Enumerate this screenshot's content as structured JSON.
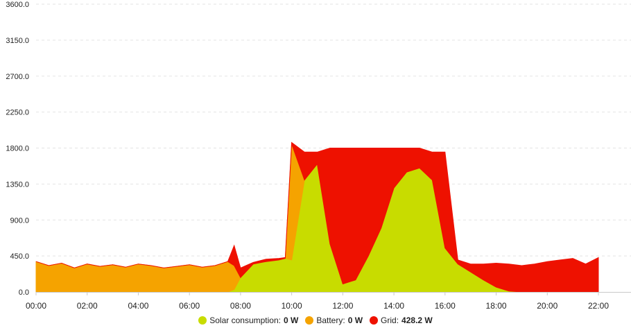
{
  "chart_data": {
    "type": "area",
    "stacked": true,
    "title": "",
    "xlabel": "",
    "ylabel": "",
    "ylim": [
      0,
      3600
    ],
    "xlim": [
      "00:00",
      "23:00"
    ],
    "y_ticks": [
      "0.0",
      "450.0",
      "900.0",
      "1350.0",
      "1800.0",
      "2250.0",
      "2700.0",
      "3150.0",
      "3600.0"
    ],
    "x_ticks": [
      "00:00",
      "02:00",
      "04:00",
      "06:00",
      "08:00",
      "10:00",
      "12:00",
      "14:00",
      "16:00",
      "18:00",
      "20:00",
      "22:00"
    ],
    "x": [
      "00:00",
      "00:30",
      "01:00",
      "01:30",
      "02:00",
      "02:30",
      "03:00",
      "03:30",
      "04:00",
      "04:30",
      "05:00",
      "05:30",
      "06:00",
      "06:30",
      "07:00",
      "07:30",
      "07:45",
      "08:00",
      "08:30",
      "09:00",
      "09:30",
      "09:45",
      "10:00",
      "10:30",
      "11:00",
      "11:30",
      "12:00",
      "12:30",
      "13:00",
      "13:30",
      "14:00",
      "14:30",
      "15:00",
      "15:30",
      "16:00",
      "16:30",
      "17:00",
      "17:30",
      "18:00",
      "18:30",
      "19:00",
      "19:30",
      "20:00",
      "20:30",
      "21:00",
      "21:30",
      "22:00"
    ],
    "grid": true,
    "legend_position": "bottom",
    "series": [
      {
        "name": "Solar consumption",
        "color": "#c8dc00",
        "values": [
          0,
          0,
          0,
          0,
          0,
          0,
          0,
          0,
          0,
          0,
          0,
          0,
          0,
          0,
          0,
          0,
          30,
          180,
          350,
          380,
          400,
          420,
          400,
          1400,
          1600,
          600,
          100,
          150,
          450,
          800,
          1300,
          1500,
          1550,
          1400,
          550,
          350,
          250,
          150,
          60,
          10,
          0,
          0,
          0,
          0,
          0,
          0,
          0
        ]
      },
      {
        "name": "Battery",
        "color": "#f5a300",
        "values": [
          380,
          330,
          360,
          300,
          350,
          320,
          340,
          310,
          350,
          330,
          300,
          320,
          340,
          310,
          330,
          380,
          300,
          0,
          0,
          0,
          0,
          0,
          1450,
          0,
          0,
          0,
          0,
          0,
          0,
          0,
          0,
          0,
          0,
          0,
          0,
          0,
          0,
          0,
          0,
          0,
          0,
          0,
          0,
          0,
          0,
          0,
          0
        ]
      },
      {
        "name": "Grid",
        "color": "#ee1100",
        "values": [
          0,
          0,
          0,
          0,
          0,
          0,
          0,
          0,
          0,
          0,
          0,
          0,
          0,
          0,
          0,
          0,
          250,
          120,
          20,
          30,
          20,
          10,
          20,
          350,
          150,
          1200,
          1700,
          1650,
          1350,
          1000,
          500,
          300,
          250,
          350,
          1200,
          50,
          100,
          200,
          300,
          340,
          330,
          350,
          380,
          400,
          420,
          350,
          430
        ]
      }
    ],
    "legend": [
      {
        "label": "Solar consumption:",
        "value": "0 W",
        "color": "#c8dc00"
      },
      {
        "label": "Battery:",
        "value": "0 W",
        "color": "#f5a300"
      },
      {
        "label": "Grid:",
        "value": "428.2 W",
        "color": "#ee1100"
      }
    ]
  }
}
